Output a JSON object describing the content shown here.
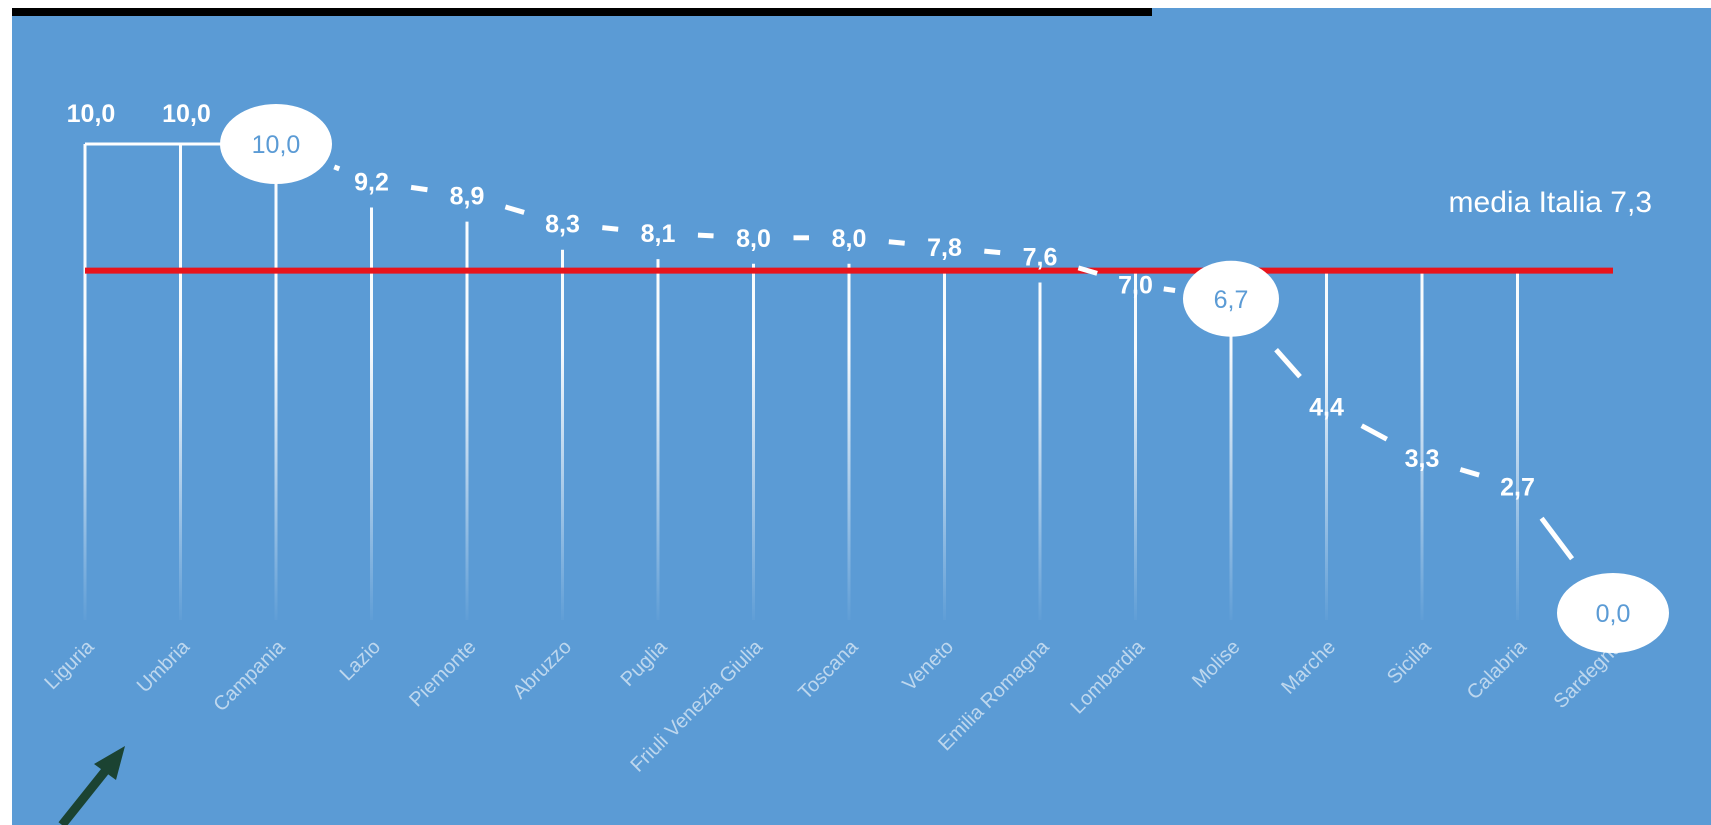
{
  "chart_data": {
    "type": "line",
    "categories": [
      "Liguria",
      "Umbria",
      "Campania",
      "Lazio",
      "Piemonte",
      "Abruzzo",
      "Puglia",
      "Friuli Venezia Giulia",
      "Toscana",
      "Veneto",
      "Emilia Romagna",
      "Lombardia",
      "Molise",
      "Marche",
      "Sicilia",
      "Calabria",
      "Sardegna"
    ],
    "values": [
      10.0,
      10.0,
      10.0,
      9.2,
      8.9,
      8.3,
      8.1,
      8.0,
      8.0,
      7.8,
      7.6,
      7.0,
      6.7,
      4.4,
      3.3,
      2.7,
      0.0
    ],
    "value_labels": [
      "10,0",
      "10,0",
      "10,0",
      "9,2",
      "8,9",
      "8,3",
      "8,1",
      "8,0",
      "8,0",
      "7,8",
      "7,6",
      "7,0",
      "6,7",
      "4,4",
      "3,3",
      "2,7",
      "0,0"
    ],
    "highlighted": [
      "Campania",
      "Molise",
      "Sardegna"
    ],
    "reference_line": {
      "value": 7.3,
      "label": "media Italia 7,3",
      "color": "#e8141c"
    },
    "ylim": [
      0,
      10
    ],
    "grid": false,
    "title": "",
    "xlabel": "",
    "ylabel": ""
  },
  "colors": {
    "background": "#5b9bd5",
    "line": "#ffffff",
    "reference": "#e8141c",
    "arrow": "#1b4332"
  },
  "annotation": {
    "icon": "arrow-icon"
  }
}
